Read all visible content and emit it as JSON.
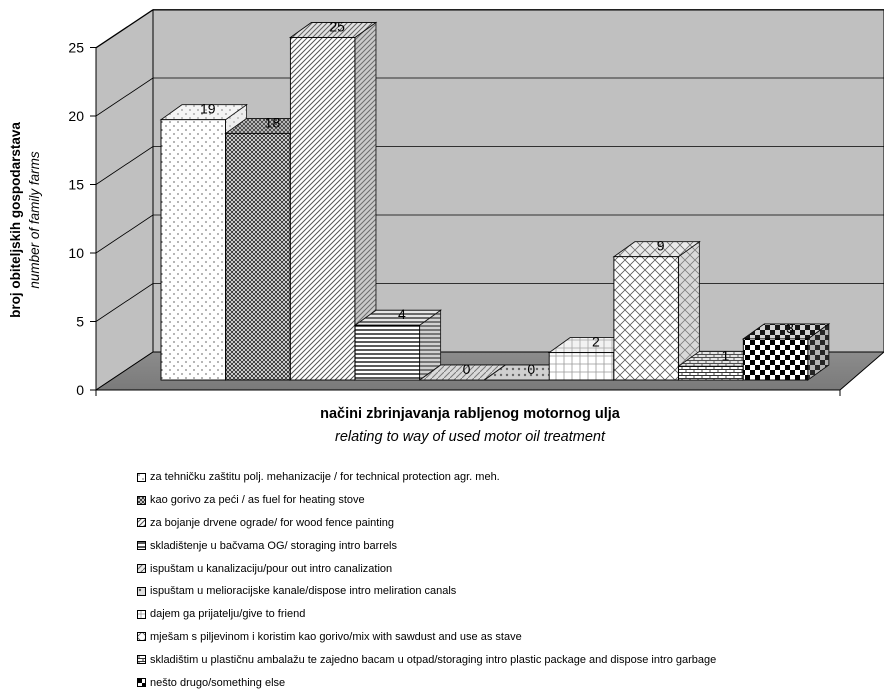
{
  "chart_data": {
    "type": "bar",
    "title": "",
    "ylabel": "broj obiteljskih gospodarstava",
    "ylabel_en": "number of family farms",
    "xlabel": "načini zbrinjavanja rabljenog motornog ulja",
    "xlabel_en": "relating to way of used motor oil treatment",
    "ylim": [
      0,
      25
    ],
    "yticks": [
      "0",
      "5",
      "10",
      "15",
      "20",
      "25"
    ],
    "grid": true,
    "legend_position": "bottom",
    "series": [
      {
        "name": "za tehničku zaštitu polj. mehanizacije / for technical protection agr. meh.",
        "value": 19,
        "label": "19"
      },
      {
        "name": "kao gorivo za peći / as fuel for heating stove",
        "value": 18,
        "label": "18"
      },
      {
        "name": "za bojanje drvene ograde/ for wood fence painting",
        "value": 25,
        "label": "25"
      },
      {
        "name": "skladištenje u bačvama OG/ storaging intro barrels",
        "value": 4,
        "label": "4"
      },
      {
        "name": "ispuštam u kanalizaciju/pour out intro canalization",
        "value": 0,
        "label": "0"
      },
      {
        "name": "ispuštam u melioracijske kanale/dispose intro meliration canals",
        "value": 0,
        "label": "0"
      },
      {
        "name": "dajem ga prijatelju/give to friend",
        "value": 2,
        "label": "2"
      },
      {
        "name": "mješam s piljevinom i koristim kao gorivo/mix with sawdust and use as stave",
        "value": 9,
        "label": "9"
      },
      {
        "name": "skladištim u plastičnu ambalažu te zajedno bacam u otpad/storaging intro plastic package and dispose intro garbage",
        "value": 1,
        "label": "1"
      },
      {
        "name": "nešto drugo/something else",
        "value": 3,
        "label": "3"
      }
    ]
  }
}
